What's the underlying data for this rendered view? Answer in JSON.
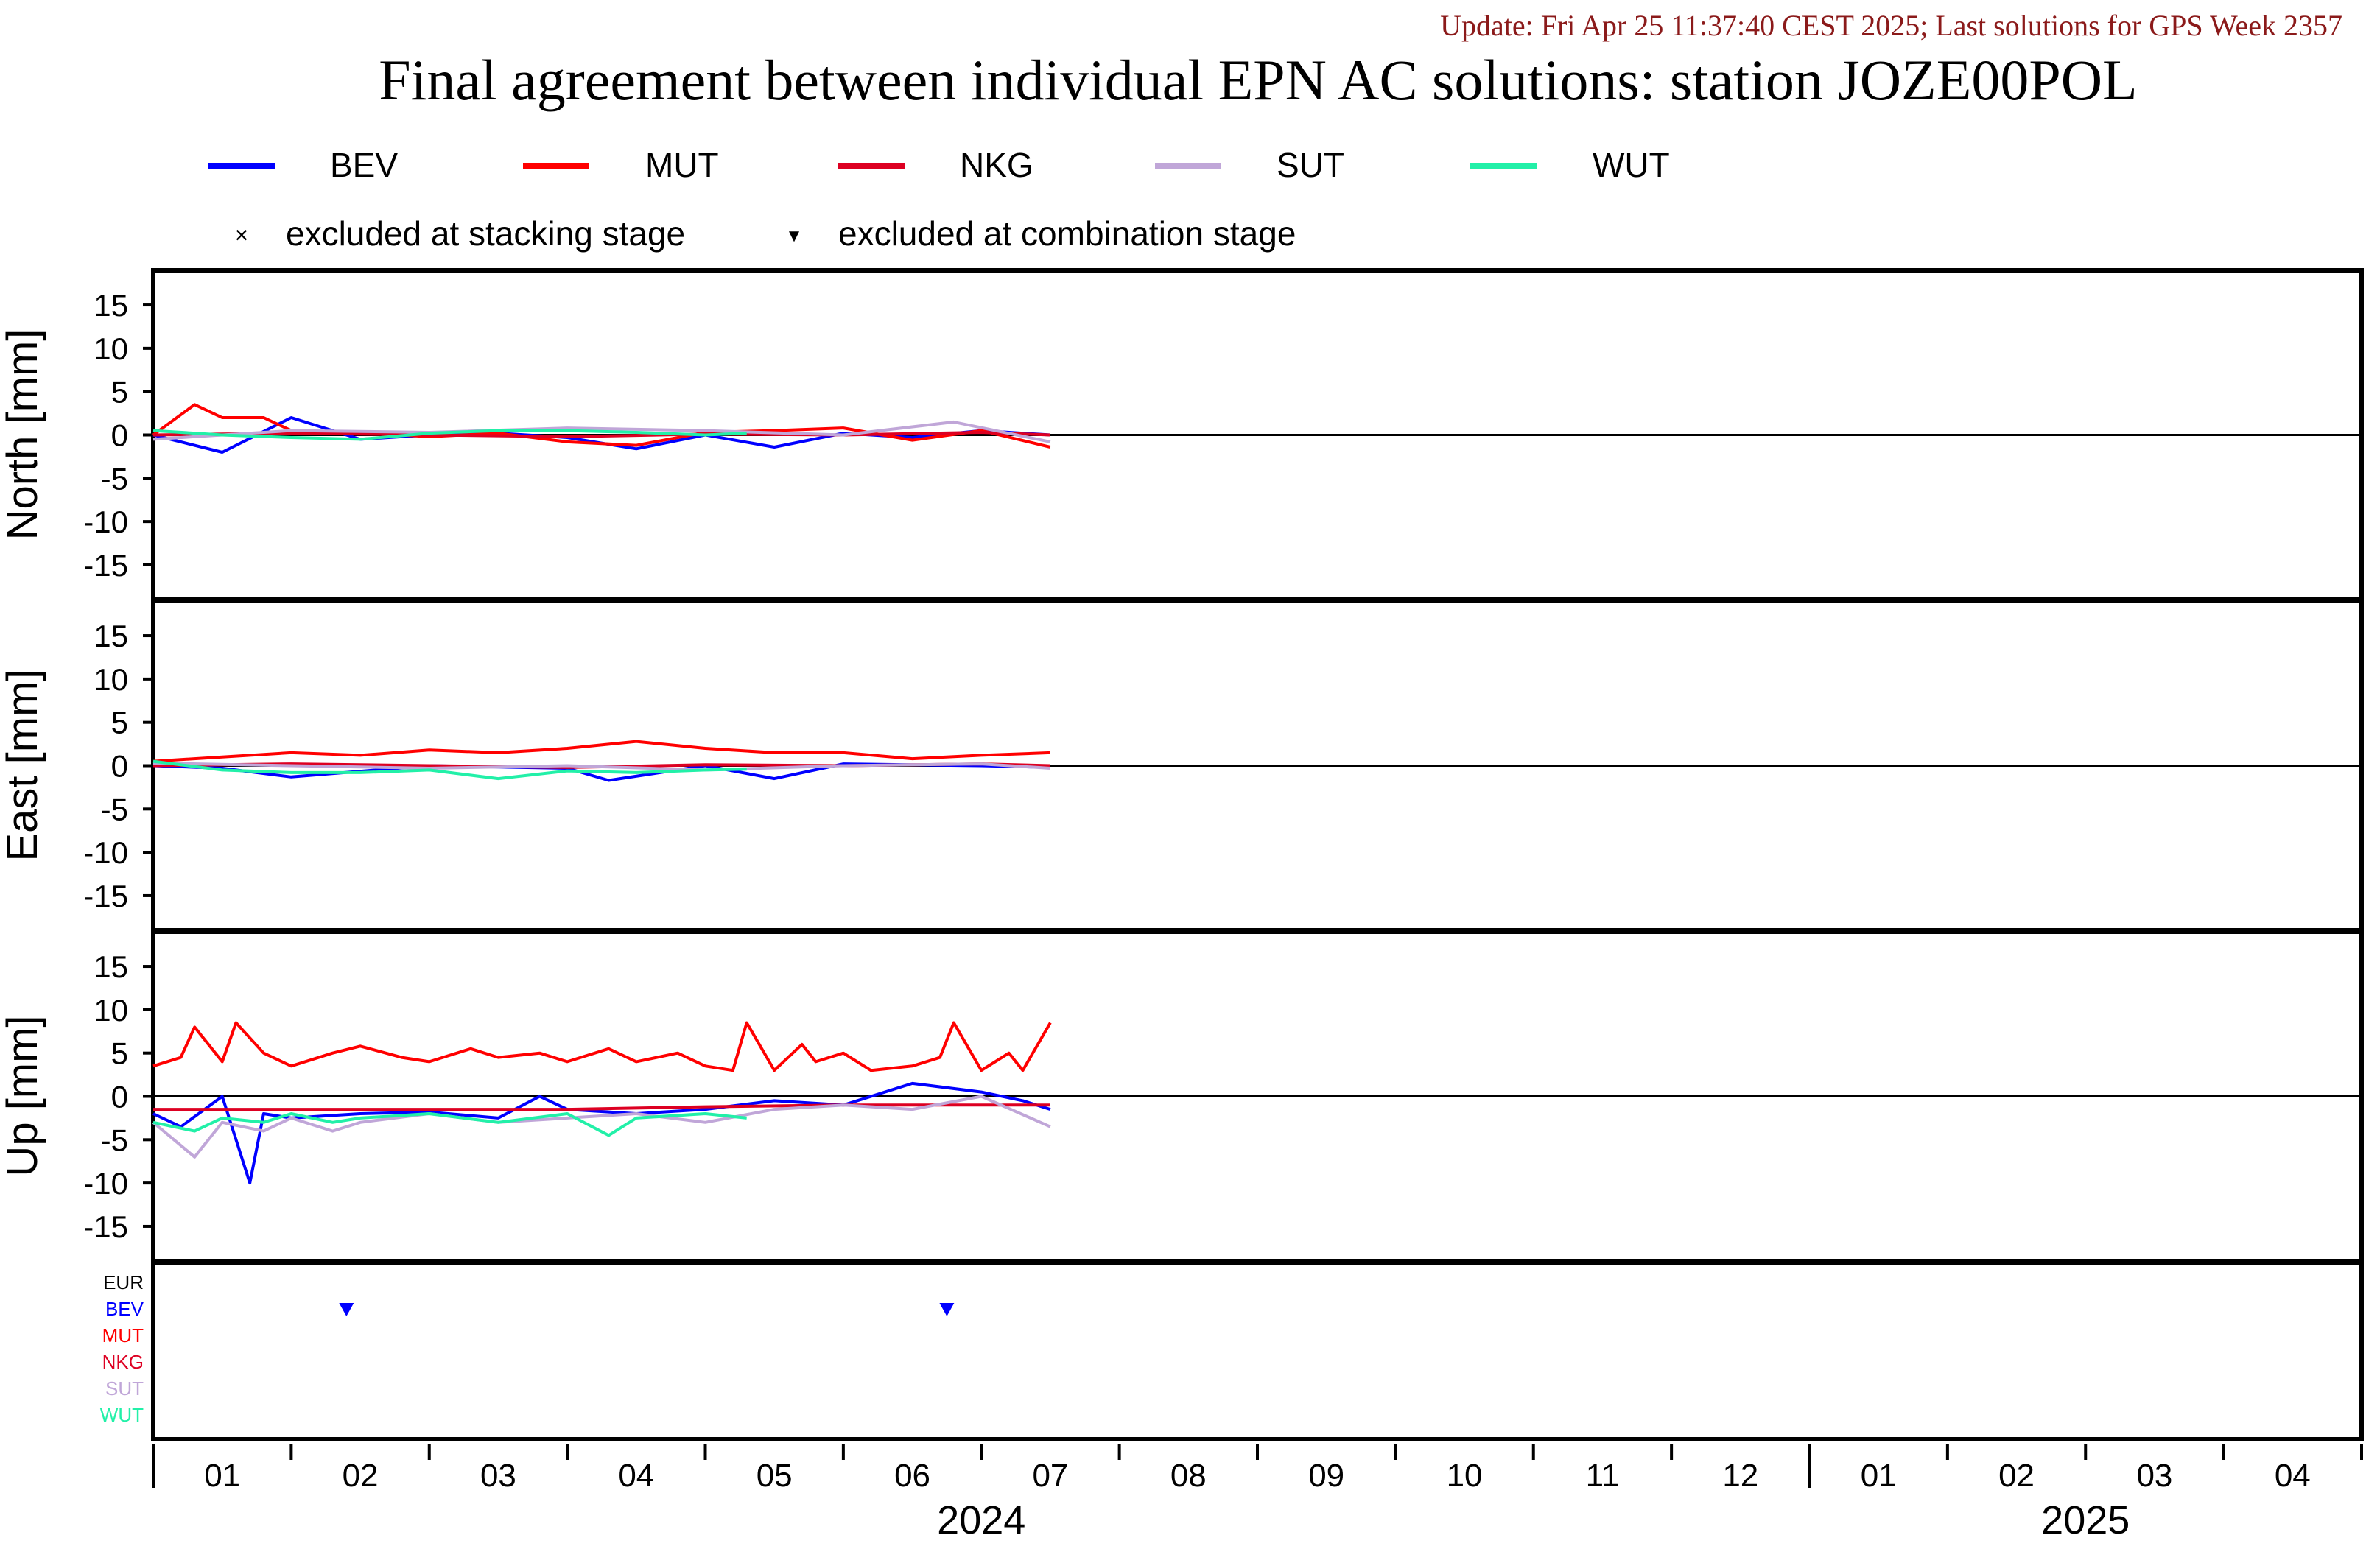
{
  "header": {
    "update_line": "Update: Fri Apr 25 11:37:40 CEST 2025; Last solutions for GPS Week 2357",
    "title": "Final agreement between individual EPN AC solutions: station JOZE00POL"
  },
  "colors": {
    "update_text": "#8b1a1a",
    "BEV": "#0000ff",
    "MUT": "#ff0000",
    "NKG": "#dd0022",
    "SUT": "#c0a6d8",
    "WUT": "#22f0a8",
    "EUR": "#000000",
    "zero_line": "#000000",
    "frame": "#000000"
  },
  "legend": {
    "series": [
      {
        "name": "BEV",
        "color_key": "BEV"
      },
      {
        "name": "MUT",
        "color_key": "MUT"
      },
      {
        "name": "NKG",
        "color_key": "NKG"
      },
      {
        "name": "SUT",
        "color_key": "SUT"
      },
      {
        "name": "WUT",
        "color_key": "WUT"
      }
    ],
    "markers": [
      {
        "symbol": "×",
        "label": "excluded at stacking stage"
      },
      {
        "symbol": "▼",
        "label": "excluded at combination stage"
      }
    ]
  },
  "chart_data": {
    "type": "line",
    "x_axis": {
      "month_labels": [
        "01",
        "02",
        "03",
        "04",
        "05",
        "06",
        "07",
        "08",
        "09",
        "10",
        "11",
        "12",
        "01",
        "02",
        "03",
        "04"
      ],
      "year_labels": [
        {
          "label": "2024",
          "months": 12
        },
        {
          "label": "2025",
          "months": 4
        }
      ],
      "range": [
        "2024-01",
        "2025-04"
      ]
    },
    "panels": [
      {
        "ylabel": "North [mm]",
        "ylim": [
          -19,
          19
        ],
        "yticks": [
          15,
          10,
          5,
          0,
          -5,
          -10,
          -15
        ],
        "series": [
          {
            "name": "BEV",
            "x_months": [
              0.0,
              0.5,
              1.0,
              1.5,
              2.0,
              2.5,
              3.0,
              3.5,
              4.0,
              4.5,
              5.0,
              5.5,
              6.0,
              6.5
            ],
            "values": [
              0.0,
              -2.0,
              2.0,
              -0.5,
              0.0,
              0.2,
              -0.3,
              -1.6,
              0.0,
              -1.4,
              0.2,
              -0.3,
              0.5,
              0.0
            ]
          },
          {
            "name": "MUT",
            "x_months": [
              0.0,
              0.3,
              0.5,
              0.8,
              1.0,
              1.5,
              2.0,
              2.5,
              3.0,
              3.5,
              4.0,
              4.5,
              5.0,
              5.5,
              6.0,
              6.5
            ],
            "values": [
              0.0,
              3.5,
              2.0,
              2.0,
              0.5,
              0.3,
              -0.2,
              0.2,
              -0.8,
              -1.2,
              0.3,
              0.5,
              0.8,
              -0.6,
              0.5,
              -1.4
            ]
          },
          {
            "name": "NKG",
            "x_months": [
              0.0,
              1.0,
              2.0,
              3.0,
              4.0,
              5.0,
              6.0,
              6.5
            ],
            "values": [
              0.0,
              0.2,
              0.0,
              -0.2,
              0.1,
              0.0,
              0.3,
              0.0
            ]
          },
          {
            "name": "SUT",
            "x_months": [
              0.0,
              0.5,
              1.0,
              2.0,
              3.0,
              4.0,
              5.0,
              5.8,
              6.5
            ],
            "values": [
              -0.5,
              0.0,
              0.5,
              0.3,
              0.8,
              0.5,
              0.0,
              1.5,
              -0.8
            ]
          },
          {
            "name": "WUT",
            "x_months": [
              0.0,
              0.5,
              1.0,
              1.5,
              2.0,
              2.5,
              3.0,
              3.5,
              4.0,
              4.3
            ],
            "values": [
              0.5,
              0.0,
              -0.3,
              -0.5,
              0.2,
              0.5,
              0.5,
              0.3,
              0.0,
              0.2
            ]
          }
        ]
      },
      {
        "ylabel": "East [mm]",
        "ylim": [
          -19,
          19
        ],
        "yticks": [
          15,
          10,
          5,
          0,
          -5,
          -10,
          -15
        ],
        "series": [
          {
            "name": "BEV",
            "x_months": [
              0.0,
              0.5,
              1.0,
              2.0,
              3.0,
              3.3,
              4.0,
              4.5,
              5.0,
              6.0,
              6.5
            ],
            "values": [
              0.0,
              -0.3,
              -1.3,
              0.0,
              -0.3,
              -1.7,
              0.0,
              -1.5,
              0.2,
              0.0,
              -0.2
            ]
          },
          {
            "name": "MUT",
            "x_months": [
              0.0,
              0.5,
              1.0,
              1.5,
              2.0,
              2.5,
              3.0,
              3.5,
              4.0,
              4.5,
              5.0,
              5.5,
              6.0,
              6.5
            ],
            "values": [
              0.5,
              1.0,
              1.5,
              1.2,
              1.8,
              1.5,
              2.0,
              2.8,
              2.0,
              1.5,
              1.5,
              0.8,
              1.2,
              1.5
            ]
          },
          {
            "name": "NKG",
            "x_months": [
              0.0,
              1.0,
              2.0,
              3.0,
              4.0,
              5.0,
              6.0,
              6.5
            ],
            "values": [
              0.0,
              0.2,
              0.0,
              -0.2,
              0.1,
              0.0,
              0.2,
              0.0
            ]
          },
          {
            "name": "SUT",
            "x_months": [
              0.0,
              1.0,
              2.0,
              3.0,
              4.0,
              5.0,
              6.0,
              6.5
            ],
            "values": [
              0.3,
              0.0,
              -0.3,
              0.0,
              -0.5,
              0.0,
              0.2,
              -0.3
            ]
          },
          {
            "name": "WUT",
            "x_months": [
              0.0,
              0.5,
              1.0,
              1.5,
              2.0,
              2.5,
              3.0,
              3.5,
              4.0,
              4.3
            ],
            "values": [
              0.5,
              -0.5,
              -0.8,
              -0.8,
              -0.5,
              -1.5,
              -0.6,
              -0.8,
              -0.5,
              -0.4
            ]
          }
        ]
      },
      {
        "ylabel": "Up [mm]",
        "ylim": [
          -19,
          19
        ],
        "yticks": [
          15,
          10,
          5,
          0,
          -5,
          -10,
          -15
        ],
        "series": [
          {
            "name": "BEV",
            "x_months": [
              0.0,
              0.2,
              0.5,
              0.7,
              0.8,
              1.0,
              1.5,
              2.0,
              2.5,
              2.8,
              3.0,
              3.5,
              4.0,
              4.5,
              5.0,
              5.5,
              6.0,
              6.3,
              6.5
            ],
            "values": [
              -2.0,
              -3.5,
              0.0,
              -10.0,
              -2.0,
              -2.5,
              -2.0,
              -1.8,
              -2.5,
              0.0,
              -1.5,
              -2.0,
              -1.5,
              -0.5,
              -1.0,
              1.5,
              0.5,
              -0.5,
              -1.5
            ]
          },
          {
            "name": "MUT",
            "x_months": [
              0.0,
              0.2,
              0.3,
              0.5,
              0.6,
              0.8,
              1.0,
              1.3,
              1.5,
              1.8,
              2.0,
              2.3,
              2.5,
              2.8,
              3.0,
              3.3,
              3.5,
              3.8,
              4.0,
              4.2,
              4.3,
              4.5,
              4.7,
              4.8,
              5.0,
              5.2,
              5.5,
              5.7,
              5.8,
              6.0,
              6.2,
              6.3,
              6.5
            ],
            "values": [
              3.5,
              4.5,
              8.0,
              4.0,
              8.5,
              5.0,
              3.5,
              5.0,
              5.8,
              4.5,
              4.0,
              5.5,
              4.5,
              5.0,
              4.0,
              5.5,
              4.0,
              5.0,
              3.5,
              3.0,
              8.5,
              3.0,
              6.0,
              4.0,
              5.0,
              3.0,
              3.5,
              4.5,
              8.5,
              3.0,
              5.0,
              3.0,
              8.5
            ]
          },
          {
            "name": "NKG",
            "x_months": [
              0.0,
              1.0,
              2.0,
              3.0,
              4.0,
              5.0,
              5.5,
              6.0,
              6.5
            ],
            "values": [
              -1.5,
              -1.5,
              -1.5,
              -1.5,
              -1.2,
              -1.0,
              -1.0,
              -1.0,
              -1.0
            ]
          },
          {
            "name": "SUT",
            "x_months": [
              0.0,
              0.3,
              0.5,
              0.8,
              1.0,
              1.3,
              1.5,
              2.0,
              2.5,
              3.0,
              3.5,
              4.0,
              4.5,
              5.0,
              5.5,
              6.0,
              6.5
            ],
            "values": [
              -3.0,
              -7.0,
              -3.0,
              -4.0,
              -2.5,
              -4.0,
              -3.0,
              -2.0,
              -3.0,
              -2.5,
              -2.0,
              -3.0,
              -1.5,
              -1.0,
              -1.5,
              0.0,
              -3.5
            ]
          },
          {
            "name": "WUT",
            "x_months": [
              0.0,
              0.3,
              0.5,
              0.8,
              1.0,
              1.3,
              1.5,
              2.0,
              2.5,
              3.0,
              3.3,
              3.5,
              4.0,
              4.3
            ],
            "values": [
              -3.0,
              -4.0,
              -2.5,
              -3.0,
              -2.0,
              -3.0,
              -2.5,
              -2.0,
              -3.0,
              -2.0,
              -4.5,
              -2.5,
              -2.0,
              -2.5
            ]
          }
        ]
      }
    ],
    "exclusion_panel": {
      "rows": [
        "EUR",
        "BEV",
        "MUT",
        "NKG",
        "SUT",
        "WUT"
      ],
      "combination_exclusions": [
        {
          "ac": "BEV",
          "x_months": 1.4
        },
        {
          "ac": "BEV",
          "x_months": 5.75
        }
      ],
      "stacking_exclusions": []
    }
  }
}
